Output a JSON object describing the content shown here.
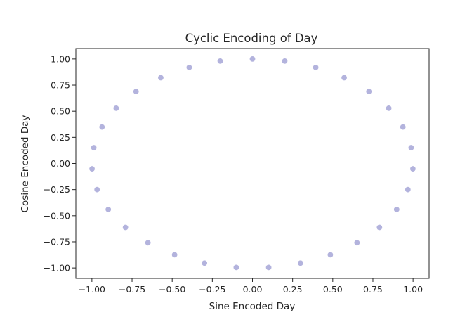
{
  "chart_data": {
    "type": "scatter",
    "title": "Cyclic Encoding of Day",
    "xlabel": "Sine Encoded Day",
    "ylabel": "Cosine Encoded Day",
    "xlim": [
      -1.1,
      1.1
    ],
    "ylim": [
      -1.1,
      1.1
    ],
    "xticks": [
      -1.0,
      -0.75,
      -0.5,
      -0.25,
      0.0,
      0.25,
      0.5,
      0.75,
      1.0
    ],
    "yticks": [
      -1.0,
      -0.75,
      -0.5,
      -0.25,
      0.0,
      0.25,
      0.5,
      0.75,
      1.0
    ],
    "xtick_labels": [
      "−1.00",
      "−0.75",
      "−0.50",
      "−0.25",
      "0.00",
      "0.25",
      "0.50",
      "0.75",
      "1.00"
    ],
    "ytick_labels": [
      "−1.00",
      "−0.75",
      "−0.50",
      "−0.25",
      "0.00",
      "0.25",
      "0.50",
      "0.75",
      "1.00"
    ],
    "grid": false,
    "legend": "none",
    "point_color": "#b3b3dd",
    "points": [
      {
        "x": 0.0,
        "y": 1.0
      },
      {
        "x": 0.201,
        "y": 0.98
      },
      {
        "x": 0.394,
        "y": 0.919
      },
      {
        "x": 0.571,
        "y": 0.821
      },
      {
        "x": 0.725,
        "y": 0.689
      },
      {
        "x": 0.849,
        "y": 0.529
      },
      {
        "x": 0.937,
        "y": 0.349
      },
      {
        "x": 0.988,
        "y": 0.151
      },
      {
        "x": 0.999,
        "y": -0.051
      },
      {
        "x": 0.968,
        "y": -0.25
      },
      {
        "x": 0.898,
        "y": -0.44
      },
      {
        "x": 0.791,
        "y": -0.612
      },
      {
        "x": 0.651,
        "y": -0.759
      },
      {
        "x": 0.485,
        "y": -0.874
      },
      {
        "x": 0.299,
        "y": -0.954
      },
      {
        "x": 0.101,
        "y": -0.995
      },
      {
        "x": -0.101,
        "y": -0.995
      },
      {
        "x": -0.299,
        "y": -0.954
      },
      {
        "x": -0.485,
        "y": -0.874
      },
      {
        "x": -0.651,
        "y": -0.759
      },
      {
        "x": -0.791,
        "y": -0.612
      },
      {
        "x": -0.898,
        "y": -0.44
      },
      {
        "x": -0.968,
        "y": -0.25
      },
      {
        "x": -0.999,
        "y": -0.051
      },
      {
        "x": -0.988,
        "y": 0.151
      },
      {
        "x": -0.937,
        "y": 0.349
      },
      {
        "x": -0.849,
        "y": 0.529
      },
      {
        "x": -0.725,
        "y": 0.689
      },
      {
        "x": -0.571,
        "y": 0.821
      },
      {
        "x": -0.394,
        "y": 0.919
      },
      {
        "x": -0.201,
        "y": 0.98
      }
    ]
  }
}
